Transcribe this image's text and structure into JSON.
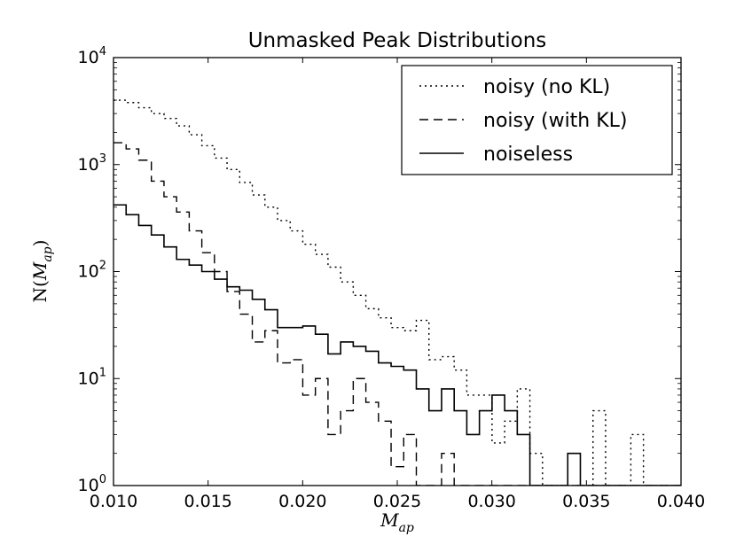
{
  "chart_data": {
    "type": "line",
    "title": "Unmasked Peak Distributions",
    "xlabel": "M_ap",
    "ylabel": "N(M_ap)",
    "x_label_main": "M",
    "x_label_sub": "ap",
    "y_label_prefix": "N(",
    "y_label_main": "M",
    "y_label_sub": "ap",
    "y_label_suffix": ")",
    "xlim": [
      0.01,
      0.04
    ],
    "ylim": [
      1,
      10000
    ],
    "yscale": "log",
    "grid": false,
    "legend_position": "top-right",
    "bin_width": 0.000667,
    "x_ticks": [
      {
        "value": 0.01,
        "label": "0.010"
      },
      {
        "value": 0.015,
        "label": "0.015"
      },
      {
        "value": 0.02,
        "label": "0.020"
      },
      {
        "value": 0.025,
        "label": "0.025"
      },
      {
        "value": 0.03,
        "label": "0.030"
      },
      {
        "value": 0.035,
        "label": "0.035"
      },
      {
        "value": 0.04,
        "label": "0.040"
      }
    ],
    "y_ticks": [
      {
        "value": 1,
        "base": "10",
        "exp": "0"
      },
      {
        "value": 10,
        "base": "10",
        "exp": "1"
      },
      {
        "value": 100,
        "base": "10",
        "exp": "2"
      },
      {
        "value": 1000,
        "base": "10",
        "exp": "3"
      },
      {
        "value": 10000,
        "base": "10",
        "exp": "4"
      }
    ],
    "series": [
      {
        "name": "noisy (no KL)",
        "style": "dotted",
        "values": [
          4000,
          3800,
          3400,
          3000,
          2700,
          2300,
          1900,
          1500,
          1150,
          900,
          680,
          520,
          400,
          300,
          240,
          180,
          145,
          110,
          80,
          60,
          45,
          37,
          30,
          28,
          35,
          15,
          16,
          12,
          7,
          7,
          2.5,
          4,
          8,
          2,
          1,
          1,
          1,
          1,
          5,
          1,
          1,
          3,
          1,
          1,
          1
        ]
      },
      {
        "name": "noisy (with KL)",
        "style": "dashed",
        "values": [
          1600,
          1400,
          1100,
          700,
          500,
          360,
          240,
          150,
          100,
          65,
          40,
          22,
          28,
          14,
          15,
          7,
          10,
          3,
          5,
          10,
          6,
          4,
          1.5,
          3,
          1,
          1,
          2,
          1,
          1,
          1,
          1,
          1,
          1,
          1,
          1,
          1,
          1,
          1,
          1,
          1,
          1,
          1,
          1,
          1,
          1
        ]
      },
      {
        "name": "noiseless",
        "style": "solid",
        "values": [
          420,
          340,
          270,
          220,
          170,
          130,
          115,
          100,
          85,
          72,
          67,
          55,
          44,
          30,
          30,
          31,
          26,
          17,
          22,
          20,
          18,
          14,
          13,
          12,
          8,
          5,
          8,
          5,
          3,
          5,
          7,
          5,
          3,
          1,
          1,
          1,
          2,
          1,
          1,
          1,
          1,
          1,
          1,
          1,
          1
        ]
      }
    ]
  }
}
